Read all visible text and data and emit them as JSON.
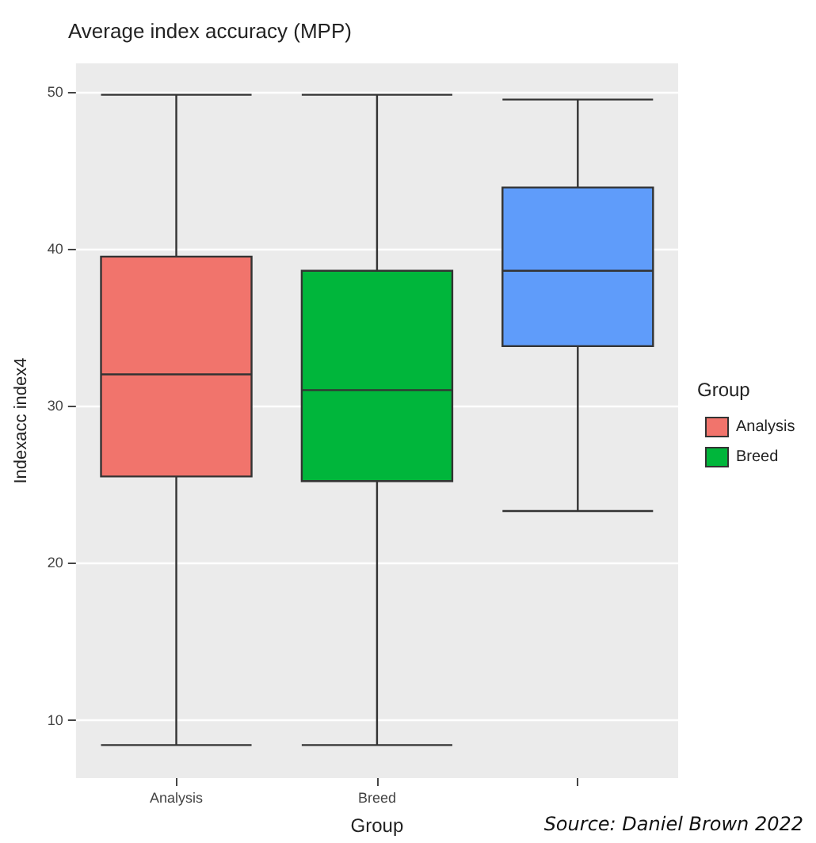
{
  "chart_data": {
    "type": "box",
    "title": "Average index accuracy (MPP)",
    "xlabel": "Group",
    "ylabel": "Indexacc index4",
    "legend_title": "Group",
    "annotations": [
      "Source: Daniel Brown 2022"
    ],
    "categories": [
      "Analysis",
      "Breed",
      null
    ],
    "series": [
      {
        "name": "Analysis",
        "color": "#f1746c",
        "boxes": [
          {
            "low": 8.4,
            "q1": 25.5,
            "median": 32.0,
            "q3": 39.5,
            "high": 49.8
          },
          null,
          null
        ]
      },
      {
        "name": "Breed",
        "color": "#00b63b",
        "boxes": [
          null,
          {
            "low": 8.4,
            "q1": 25.2,
            "median": 31.0,
            "q3": 38.6,
            "high": 49.8
          },
          null
        ]
      },
      {
        "color": "#5f9cfa",
        "boxes": [
          null,
          null,
          {
            "low": 23.3,
            "q1": 33.8,
            "median": 38.6,
            "q3": 43.9,
            "high": 49.5
          }
        ]
      }
    ],
    "ylim": [
      6.3,
      51.8
    ],
    "yticks": [
      10,
      20,
      30,
      40,
      50
    ],
    "grid": true,
    "legend": "right"
  }
}
